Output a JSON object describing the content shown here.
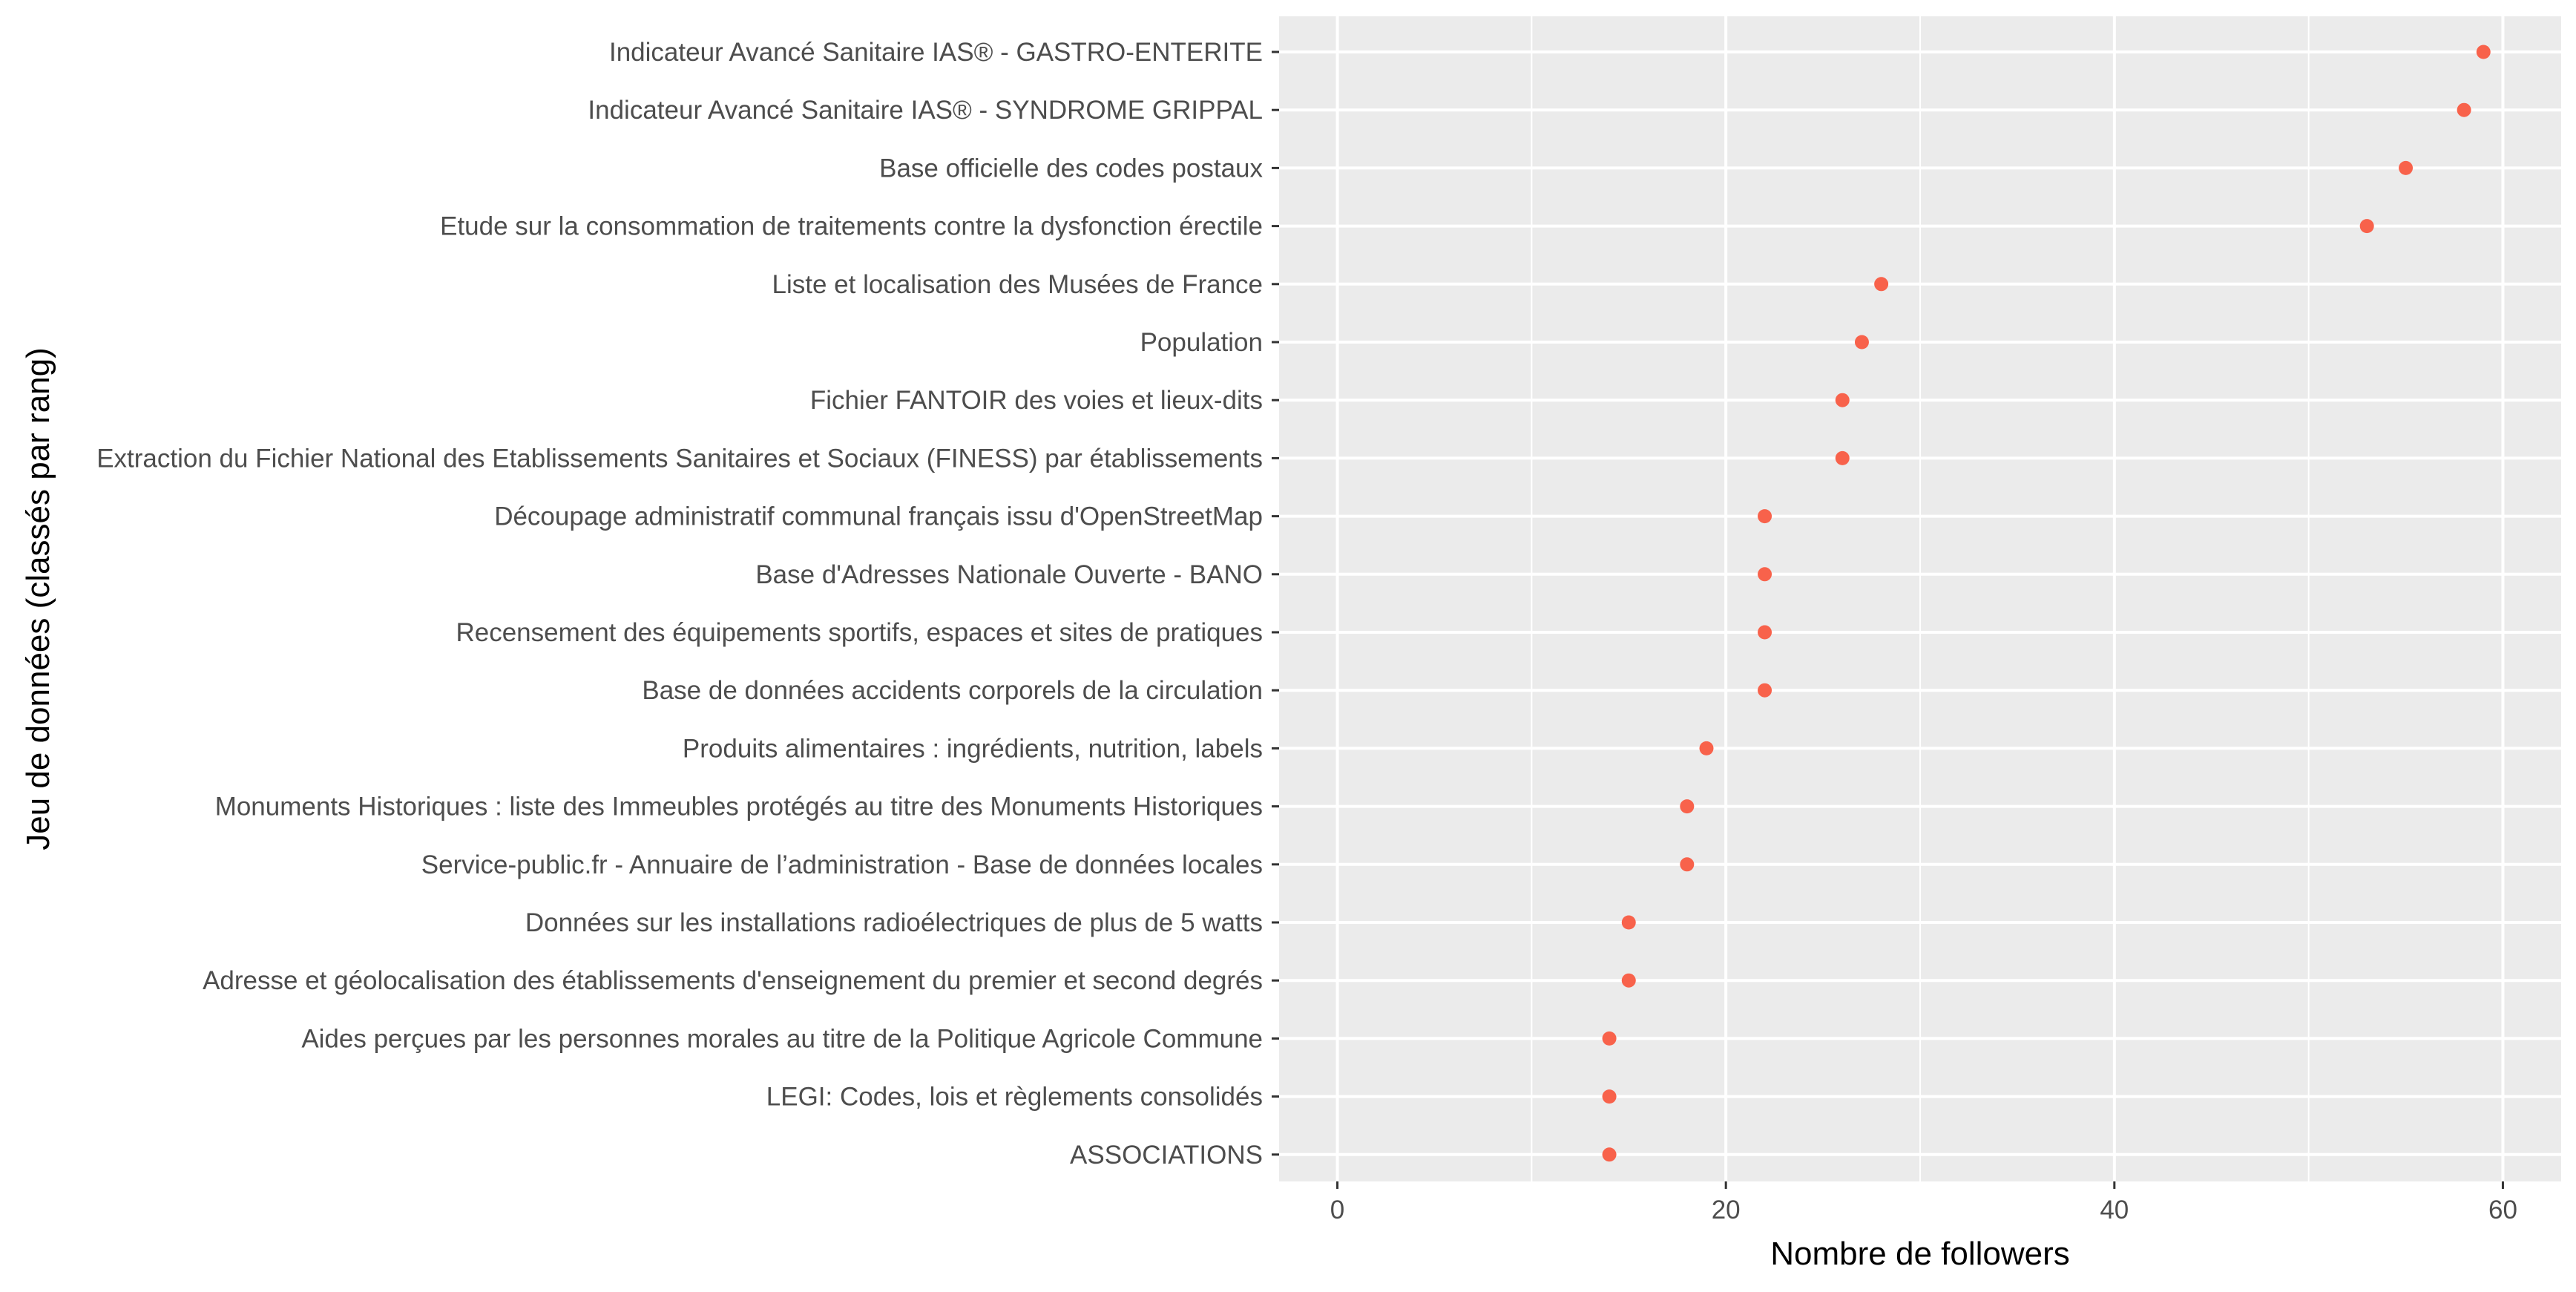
{
  "chart_data": {
    "type": "scatter",
    "xlabel": "Nombre de followers",
    "ylabel": "Jeu de données (classés par rang)",
    "xlim": [
      -3,
      63
    ],
    "x_ticks": [
      0,
      20,
      40,
      60
    ],
    "grid": true,
    "point_color": "#F8624B",
    "panel_color": "#EBEBEB",
    "grid_color": "#FFFFFF",
    "categories": [
      "Indicateur Avancé Sanitaire IAS® - GASTRO-ENTERITE",
      "Indicateur Avancé Sanitaire IAS® - SYNDROME GRIPPAL",
      "Base officielle des codes postaux",
      "Etude sur la consommation de traitements contre la dysfonction érectile",
      "Liste et localisation des Musées de France",
      "Population",
      "Fichier FANTOIR des voies et lieux-dits",
      "Extraction du Fichier National des Etablissements Sanitaires et Sociaux (FINESS) par établissements",
      "Découpage administratif communal français issu d'OpenStreetMap",
      "Base d'Adresses Nationale Ouverte - BANO",
      "Recensement des équipements sportifs, espaces et sites de pratiques",
      "Base de données accidents corporels de la circulation",
      "Produits alimentaires : ingrédients, nutrition, labels",
      "Monuments Historiques : liste des Immeubles protégés au titre des Monuments Historiques",
      "Service-public.fr - Annuaire de l’administration - Base de données locales",
      "Données sur les installations radioélectriques de plus de 5 watts",
      "Adresse et géolocalisation des établissements d'enseignement du premier et second degrés",
      "Aides perçues par les personnes morales au titre de la Politique Agricole Commune",
      "LEGI: Codes, lois et règlements consolidés",
      "ASSOCIATIONS"
    ],
    "values": [
      59,
      58,
      55,
      53,
      28,
      27,
      26,
      26,
      22,
      22,
      22,
      22,
      19,
      18,
      18,
      15,
      15,
      14,
      14,
      14
    ]
  }
}
